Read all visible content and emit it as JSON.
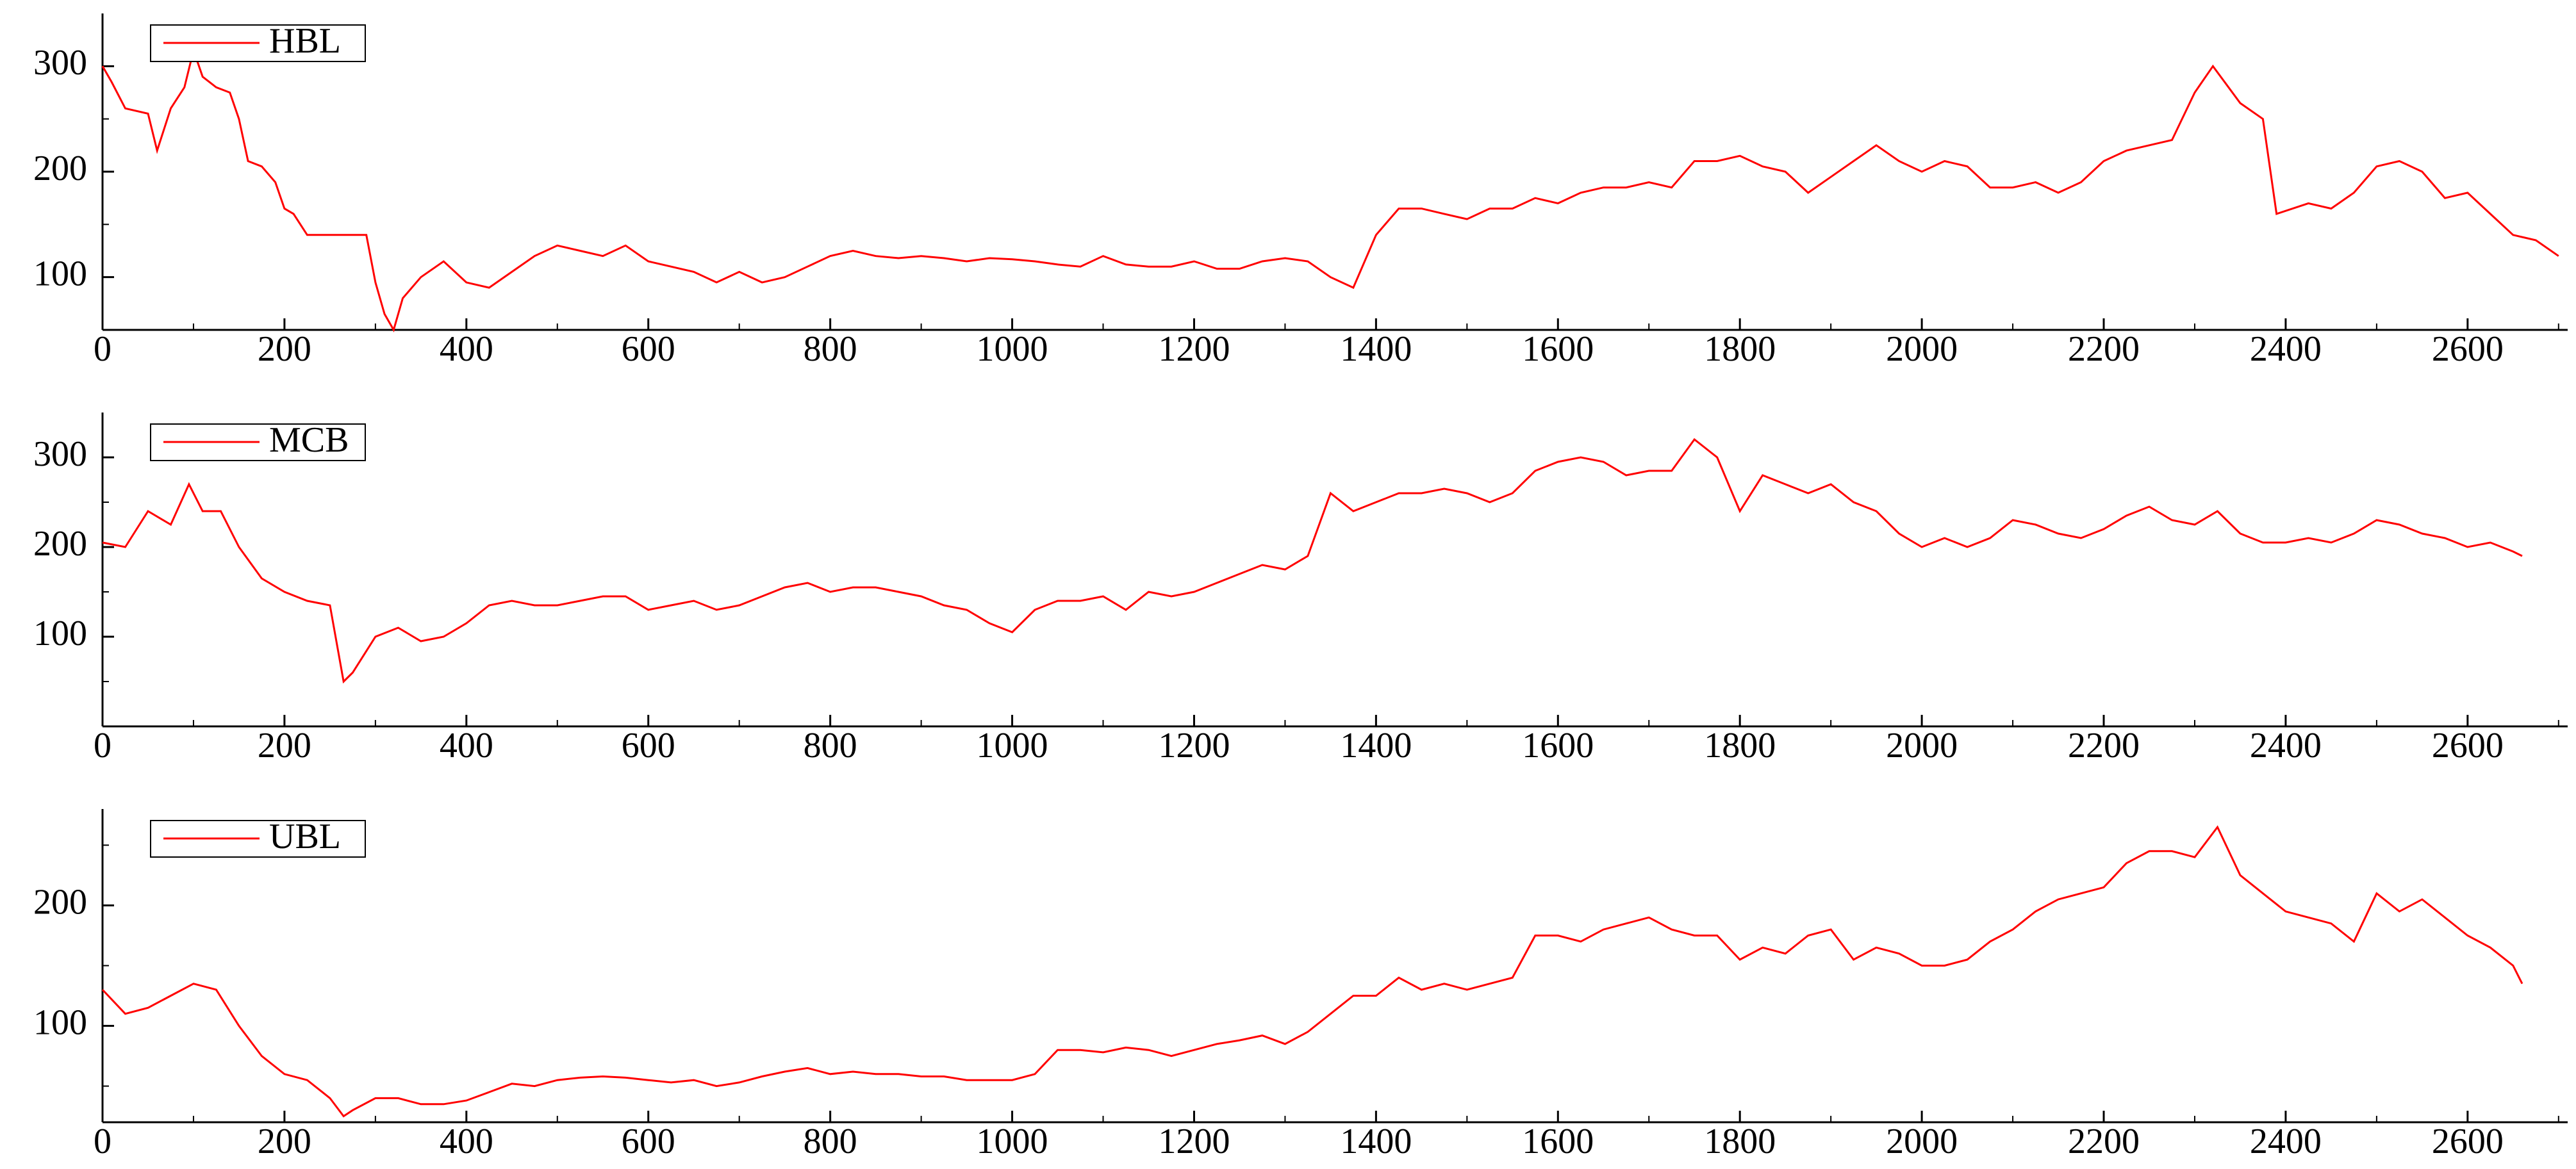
{
  "chart_data": [
    {
      "type": "line",
      "legend": "upper left",
      "xlim": [
        0,
        2710
      ],
      "xticks": [
        0,
        200,
        400,
        600,
        800,
        1000,
        1200,
        1400,
        1600,
        1800,
        2000,
        2200,
        2400,
        2600
      ],
      "ylim": [
        50,
        350
      ],
      "yticks": [
        100,
        200,
        300
      ],
      "x": [
        0,
        10,
        25,
        50,
        60,
        75,
        90,
        100,
        110,
        125,
        140,
        150,
        160,
        175,
        190,
        200,
        210,
        225,
        250,
        275,
        290,
        300,
        310,
        320,
        330,
        350,
        375,
        400,
        425,
        450,
        475,
        500,
        525,
        550,
        575,
        600,
        625,
        650,
        675,
        700,
        725,
        750,
        775,
        800,
        825,
        850,
        875,
        900,
        925,
        950,
        975,
        1000,
        1025,
        1050,
        1075,
        1100,
        1125,
        1150,
        1175,
        1200,
        1225,
        1250,
        1275,
        1300,
        1325,
        1350,
        1375,
        1400,
        1425,
        1450,
        1475,
        1500,
        1525,
        1550,
        1575,
        1600,
        1625,
        1650,
        1675,
        1700,
        1725,
        1750,
        1775,
        1800,
        1825,
        1850,
        1875,
        1900,
        1925,
        1950,
        1975,
        2000,
        2025,
        2050,
        2075,
        2100,
        2125,
        2150,
        2175,
        2200,
        2225,
        2250,
        2275,
        2300,
        2320,
        2350,
        2375,
        2390,
        2425,
        2450,
        2475,
        2500,
        2525,
        2550,
        2575,
        2600,
        2625,
        2650,
        2675,
        2700
      ],
      "series": [
        {
          "name": "HBL",
          "color": "#ff0000",
          "values": [
            300,
            285,
            260,
            255,
            220,
            260,
            280,
            315,
            290,
            280,
            275,
            250,
            210,
            205,
            190,
            165,
            160,
            140,
            140,
            140,
            140,
            95,
            65,
            50,
            80,
            100,
            115,
            95,
            90,
            105,
            120,
            130,
            125,
            120,
            130,
            115,
            110,
            105,
            95,
            105,
            95,
            100,
            110,
            120,
            125,
            120,
            118,
            120,
            118,
            115,
            118,
            117,
            115,
            112,
            110,
            120,
            112,
            110,
            110,
            115,
            108,
            108,
            115,
            118,
            115,
            100,
            90,
            140,
            165,
            165,
            160,
            155,
            165,
            165,
            175,
            170,
            180,
            185,
            185,
            190,
            185,
            210,
            210,
            215,
            205,
            200,
            180,
            195,
            210,
            225,
            210,
            200,
            210,
            205,
            185,
            185,
            190,
            180,
            190,
            210,
            220,
            225,
            230,
            275,
            300,
            265,
            250,
            160,
            170,
            165,
            180,
            205,
            210,
            200,
            175,
            180,
            160,
            140,
            135,
            120
          ]
        }
      ]
    },
    {
      "type": "line",
      "legend": "upper left",
      "xlim": [
        0,
        2710
      ],
      "xticks": [
        0,
        200,
        400,
        600,
        800,
        1000,
        1200,
        1400,
        1600,
        1800,
        2000,
        2200,
        2400,
        2600
      ],
      "ylim": [
        0,
        350
      ],
      "yticks": [
        100,
        200,
        300
      ],
      "x": [
        0,
        25,
        50,
        75,
        95,
        110,
        130,
        150,
        175,
        200,
        225,
        250,
        265,
        275,
        300,
        325,
        350,
        375,
        400,
        425,
        450,
        475,
        500,
        525,
        550,
        575,
        600,
        625,
        650,
        675,
        700,
        725,
        750,
        775,
        800,
        825,
        850,
        875,
        900,
        925,
        950,
        975,
        1000,
        1025,
        1050,
        1075,
        1100,
        1125,
        1150,
        1175,
        1200,
        1225,
        1250,
        1275,
        1300,
        1325,
        1350,
        1375,
        1400,
        1425,
        1450,
        1475,
        1500,
        1525,
        1550,
        1575,
        1600,
        1625,
        1650,
        1675,
        1700,
        1725,
        1750,
        1775,
        1800,
        1825,
        1850,
        1875,
        1900,
        1925,
        1950,
        1975,
        2000,
        2025,
        2050,
        2075,
        2100,
        2125,
        2150,
        2175,
        2200,
        2225,
        2250,
        2275,
        2300,
        2325,
        2350,
        2375,
        2400,
        2425,
        2450,
        2475,
        2500,
        2525,
        2550,
        2575,
        2600,
        2625,
        2650,
        2660
      ],
      "series": [
        {
          "name": "MCB",
          "color": "#ff0000",
          "values": [
            205,
            200,
            240,
            225,
            270,
            240,
            240,
            200,
            165,
            150,
            140,
            135,
            50,
            60,
            100,
            110,
            95,
            100,
            115,
            135,
            140,
            135,
            135,
            140,
            145,
            145,
            130,
            135,
            140,
            130,
            135,
            145,
            155,
            160,
            150,
            155,
            155,
            150,
            145,
            135,
            130,
            115,
            105,
            130,
            140,
            140,
            145,
            130,
            150,
            145,
            150,
            160,
            170,
            180,
            175,
            190,
            260,
            240,
            250,
            260,
            260,
            265,
            260,
            250,
            260,
            285,
            295,
            300,
            295,
            280,
            285,
            285,
            320,
            300,
            240,
            280,
            270,
            260,
            270,
            250,
            240,
            215,
            200,
            210,
            200,
            210,
            230,
            225,
            215,
            210,
            220,
            235,
            245,
            230,
            225,
            240,
            215,
            205,
            205,
            210,
            205,
            215,
            230,
            225,
            215,
            210,
            200,
            205,
            195,
            190
          ]
        }
      ]
    },
    {
      "type": "line",
      "legend": "upper left",
      "xlim": [
        0,
        2710
      ],
      "xticks": [
        0,
        200,
        400,
        600,
        800,
        1000,
        1200,
        1400,
        1600,
        1800,
        2000,
        2200,
        2400,
        2600
      ],
      "ylim": [
        20,
        280
      ],
      "yticks": [
        100,
        200
      ],
      "x": [
        0,
        25,
        50,
        75,
        100,
        125,
        150,
        175,
        200,
        225,
        250,
        265,
        275,
        300,
        325,
        350,
        375,
        400,
        425,
        450,
        475,
        500,
        525,
        550,
        575,
        600,
        625,
        650,
        675,
        700,
        725,
        750,
        775,
        800,
        825,
        850,
        875,
        900,
        925,
        950,
        975,
        1000,
        1025,
        1050,
        1075,
        1100,
        1125,
        1150,
        1175,
        1200,
        1225,
        1250,
        1275,
        1300,
        1325,
        1350,
        1375,
        1400,
        1425,
        1450,
        1475,
        1500,
        1525,
        1550,
        1575,
        1600,
        1625,
        1650,
        1675,
        1700,
        1725,
        1750,
        1775,
        1800,
        1825,
        1850,
        1875,
        1900,
        1925,
        1950,
        1975,
        2000,
        2025,
        2050,
        2075,
        2100,
        2125,
        2150,
        2175,
        2200,
        2225,
        2250,
        2275,
        2300,
        2325,
        2350,
        2375,
        2400,
        2425,
        2450,
        2475,
        2500,
        2525,
        2550,
        2575,
        2600,
        2625,
        2650,
        2660
      ],
      "series": [
        {
          "name": "UBL",
          "color": "#ff0000",
          "values": [
            130,
            110,
            115,
            125,
            135,
            130,
            100,
            75,
            60,
            55,
            40,
            25,
            30,
            40,
            40,
            35,
            35,
            38,
            45,
            52,
            50,
            55,
            57,
            58,
            57,
            55,
            53,
            55,
            50,
            53,
            58,
            62,
            65,
            60,
            62,
            60,
            60,
            58,
            58,
            55,
            55,
            55,
            60,
            80,
            80,
            78,
            82,
            80,
            75,
            80,
            85,
            88,
            92,
            85,
            95,
            110,
            125,
            125,
            140,
            130,
            135,
            130,
            135,
            140,
            175,
            175,
            170,
            180,
            185,
            190,
            180,
            175,
            175,
            155,
            165,
            160,
            175,
            180,
            155,
            165,
            160,
            150,
            150,
            155,
            170,
            180,
            195,
            205,
            210,
            215,
            235,
            245,
            245,
            240,
            265,
            225,
            210,
            195,
            190,
            185,
            170,
            210,
            195,
            205,
            190,
            175,
            165,
            150,
            135
          ]
        }
      ]
    }
  ]
}
